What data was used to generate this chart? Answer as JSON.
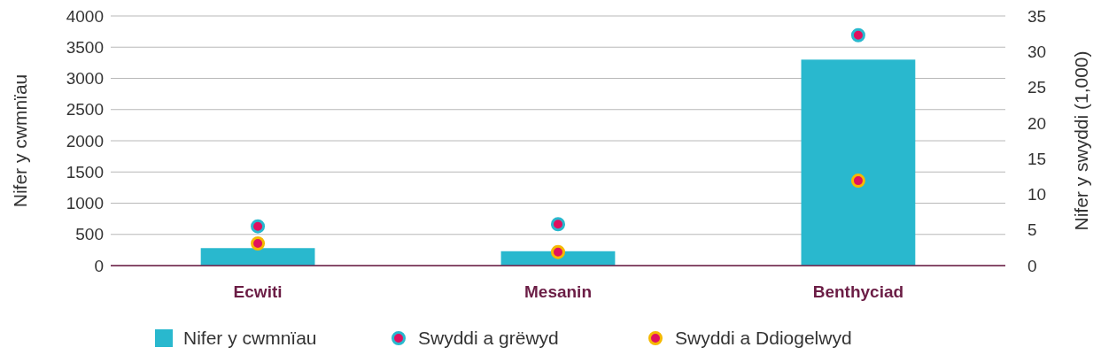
{
  "chart_data": {
    "type": "bar",
    "categories": [
      "Ecwiti",
      "Mesanin",
      "Benthyciad"
    ],
    "ylabel": "Nifer y cwmnïau",
    "y2label": "Nifer y swyddi (1,000)",
    "ylim": [
      0,
      4000
    ],
    "yticks": [
      0,
      500,
      1000,
      1500,
      2000,
      2500,
      3000,
      3500,
      4000
    ],
    "y2lim": [
      0,
      35
    ],
    "y2ticks": [
      0,
      5,
      10,
      15,
      20,
      25,
      30,
      35
    ],
    "grid": "y",
    "legend": "bottom",
    "series": [
      {
        "name": "Nifer y cwmnïau",
        "color": "#29b8ce",
        "values": [
          280,
          230,
          3300
        ]
      },
      {
        "name": "Swyddi a grëwyd",
        "type": "scatter",
        "axis": "y2",
        "marker": "circle",
        "color": "#29b8ce",
        "values": [
          5.5,
          5.8,
          32.3
        ]
      },
      {
        "name": "Swyddi a Ddiogelwyd",
        "type": "scatter",
        "axis": "y2",
        "marker": "circle",
        "color": "#f5b800",
        "values": [
          3.1,
          1.9,
          11.9
        ]
      }
    ]
  }
}
